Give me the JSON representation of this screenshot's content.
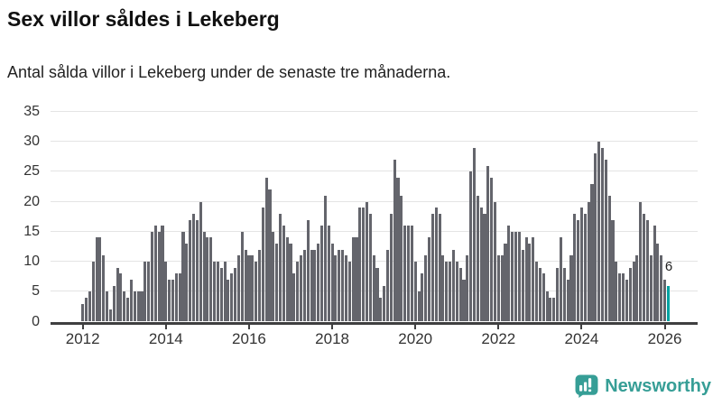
{
  "header": {
    "title": "Sex villor såldes i Lekeberg",
    "subtitle": "Antal sålda villor i Lekeberg under de senaste tre månaderna."
  },
  "chart_data": {
    "type": "bar",
    "title": "Sex villor såldes i Lekeberg",
    "subtitle": "Antal sålda villor i Lekeberg under de senaste tre månaderna.",
    "x_start": "2012-01",
    "x_freq": "monthly",
    "x_tick_labels": [
      "2012",
      "2014",
      "2016",
      "2018",
      "2020",
      "2022",
      "2024",
      "2026"
    ],
    "y_ticks": [
      0,
      5,
      10,
      15,
      20,
      25,
      30,
      35
    ],
    "ylim": [
      0,
      35
    ],
    "grid": true,
    "legend": false,
    "bar_color": "#64656c",
    "highlight_color": "#00a3a2",
    "series": [
      {
        "name": "Antal sålda villor (rullande 3 månader)",
        "values": [
          3,
          4,
          5,
          10,
          14,
          14,
          11,
          5,
          2,
          6,
          9,
          8,
          5,
          4,
          7,
          5,
          5,
          5,
          10,
          10,
          15,
          16,
          15,
          16,
          10,
          7,
          7,
          8,
          8,
          15,
          13,
          17,
          18,
          17,
          20,
          15,
          14,
          14,
          10,
          10,
          9,
          10,
          7,
          8,
          9,
          11,
          15,
          12,
          11,
          11,
          10,
          12,
          19,
          24,
          22,
          15,
          13,
          18,
          16,
          14,
          13,
          8,
          10,
          11,
          12,
          17,
          12,
          12,
          13,
          16,
          21,
          16,
          13,
          11,
          12,
          12,
          11,
          10,
          14,
          14,
          19,
          19,
          20,
          18,
          11,
          9,
          4,
          6,
          12,
          18,
          27,
          24,
          21,
          16,
          16,
          16,
          10,
          5,
          8,
          11,
          14,
          18,
          19,
          18,
          11,
          10,
          10,
          12,
          10,
          9,
          7,
          11,
          25,
          29,
          21,
          19,
          18,
          26,
          24,
          20,
          11,
          11,
          13,
          16,
          15,
          15,
          15,
          12,
          14,
          13,
          14,
          10,
          9,
          8,
          5,
          4,
          4,
          9,
          14,
          9,
          7,
          11,
          18,
          17,
          19,
          18,
          20,
          23,
          28,
          30,
          29,
          27,
          21,
          17,
          10,
          8,
          8,
          7,
          9,
          10,
          11,
          20,
          18,
          17,
          11,
          16,
          13,
          11,
          7,
          6
        ]
      }
    ],
    "highlight": {
      "index": 169,
      "value": 6,
      "label": "6"
    }
  },
  "footer": {
    "brand": "Newsworthy"
  },
  "colors": {
    "bar_gray": "#64656c",
    "bar_teal": "#00a3a2",
    "grid": "#e4e4e4",
    "axis": "#3f3f40",
    "logo_teal": "#369e96"
  }
}
